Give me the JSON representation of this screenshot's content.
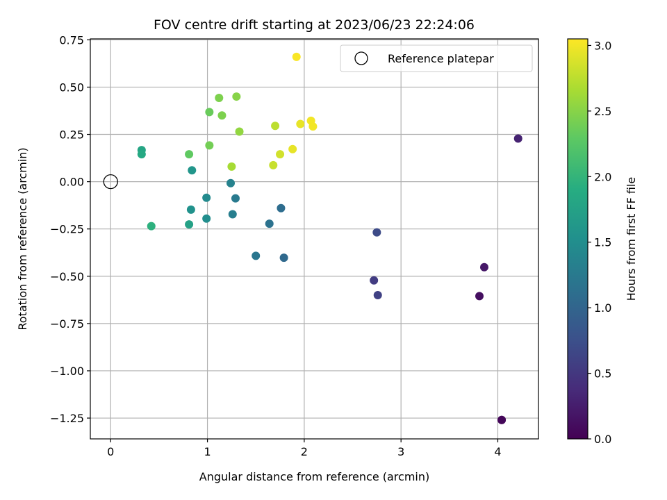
{
  "chart_data": {
    "type": "scatter",
    "title": "FOV centre drift starting at 2023/06/23 22:24:06",
    "xlabel": "Angular distance from reference (arcmin)",
    "ylabel": "Rotation from reference (arcmin)",
    "xlim": [
      -0.21,
      4.42
    ],
    "ylim": [
      -1.36,
      0.755
    ],
    "xticks": [
      0,
      1,
      2,
      3,
      4
    ],
    "xtick_labels": [
      "0",
      "1",
      "2",
      "3",
      "4"
    ],
    "yticks": [
      0.75,
      0.5,
      0.25,
      0.0,
      -0.25,
      -0.5,
      -0.75,
      -1.0,
      -1.25
    ],
    "ytick_labels": [
      "0.75",
      "0.50",
      "0.25",
      "0.00",
      "−0.25",
      "−0.50",
      "−0.75",
      "−1.00",
      "−1.25"
    ],
    "grid": true,
    "colorbar": {
      "label": "Hours from first FF file",
      "colormap": "viridis",
      "range": [
        0.0,
        3.05
      ],
      "ticks": [
        0.0,
        0.5,
        1.0,
        1.5,
        2.0,
        2.5,
        3.0
      ],
      "tick_labels": [
        "0.0",
        "0.5",
        "1.0",
        "1.5",
        "2.0",
        "2.5",
        "3.0"
      ]
    },
    "legend": {
      "placement": "top-right",
      "entries": [
        {
          "label": "Reference platepar",
          "marker": "open-circle"
        }
      ]
    },
    "reference_point": {
      "x": 0,
      "y": 0
    },
    "points": [
      {
        "x": 4.04,
        "y": -1.26,
        "hours": 0.02
      },
      {
        "x": 4.04,
        "y": -1.26,
        "hours": 0.05
      },
      {
        "x": 3.81,
        "y": -0.605,
        "hours": 0.12
      },
      {
        "x": 3.86,
        "y": -0.452,
        "hours": 0.2
      },
      {
        "x": 4.21,
        "y": 0.228,
        "hours": 0.3
      },
      {
        "x": 2.72,
        "y": -0.522,
        "hours": 0.55
      },
      {
        "x": 2.76,
        "y": -0.6,
        "hours": 0.6
      },
      {
        "x": 2.75,
        "y": -0.268,
        "hours": 0.7
      },
      {
        "x": 1.79,
        "y": -0.402,
        "hours": 1.05
      },
      {
        "x": 1.76,
        "y": -0.14,
        "hours": 1.1
      },
      {
        "x": 1.64,
        "y": -0.222,
        "hours": 1.15
      },
      {
        "x": 1.5,
        "y": -0.392,
        "hours": 1.2
      },
      {
        "x": 1.29,
        "y": -0.088,
        "hours": 1.25
      },
      {
        "x": 1.26,
        "y": -0.172,
        "hours": 1.3
      },
      {
        "x": 1.24,
        "y": -0.008,
        "hours": 1.35
      },
      {
        "x": 0.99,
        "y": -0.085,
        "hours": 1.45
      },
      {
        "x": 0.99,
        "y": -0.195,
        "hours": 1.5
      },
      {
        "x": 0.83,
        "y": -0.148,
        "hours": 1.55
      },
      {
        "x": 0.84,
        "y": 0.06,
        "hours": 1.6
      },
      {
        "x": 0.81,
        "y": -0.226,
        "hours": 1.75
      },
      {
        "x": 0.32,
        "y": 0.167,
        "hours": 1.8
      },
      {
        "x": 0.32,
        "y": 0.145,
        "hours": 1.85
      },
      {
        "x": 0.42,
        "y": -0.235,
        "hours": 1.95
      },
      {
        "x": 0.81,
        "y": 0.145,
        "hours": 2.3
      },
      {
        "x": 1.02,
        "y": 0.368,
        "hours": 2.35
      },
      {
        "x": 1.02,
        "y": 0.192,
        "hours": 2.4
      },
      {
        "x": 1.12,
        "y": 0.443,
        "hours": 2.45
      },
      {
        "x": 1.15,
        "y": 0.35,
        "hours": 2.45
      },
      {
        "x": 1.3,
        "y": 0.45,
        "hours": 2.5
      },
      {
        "x": 1.33,
        "y": 0.265,
        "hours": 2.55
      },
      {
        "x": 1.25,
        "y": 0.08,
        "hours": 2.65
      },
      {
        "x": 1.7,
        "y": 0.295,
        "hours": 2.75
      },
      {
        "x": 1.68,
        "y": 0.087,
        "hours": 2.8
      },
      {
        "x": 1.75,
        "y": 0.145,
        "hours": 2.85
      },
      {
        "x": 1.88,
        "y": 0.172,
        "hours": 2.95
      },
      {
        "x": 1.96,
        "y": 0.305,
        "hours": 2.95
      },
      {
        "x": 2.07,
        "y": 0.322,
        "hours": 3.0
      },
      {
        "x": 2.09,
        "y": 0.292,
        "hours": 3.0
      },
      {
        "x": 1.92,
        "y": 0.66,
        "hours": 3.03
      }
    ]
  }
}
